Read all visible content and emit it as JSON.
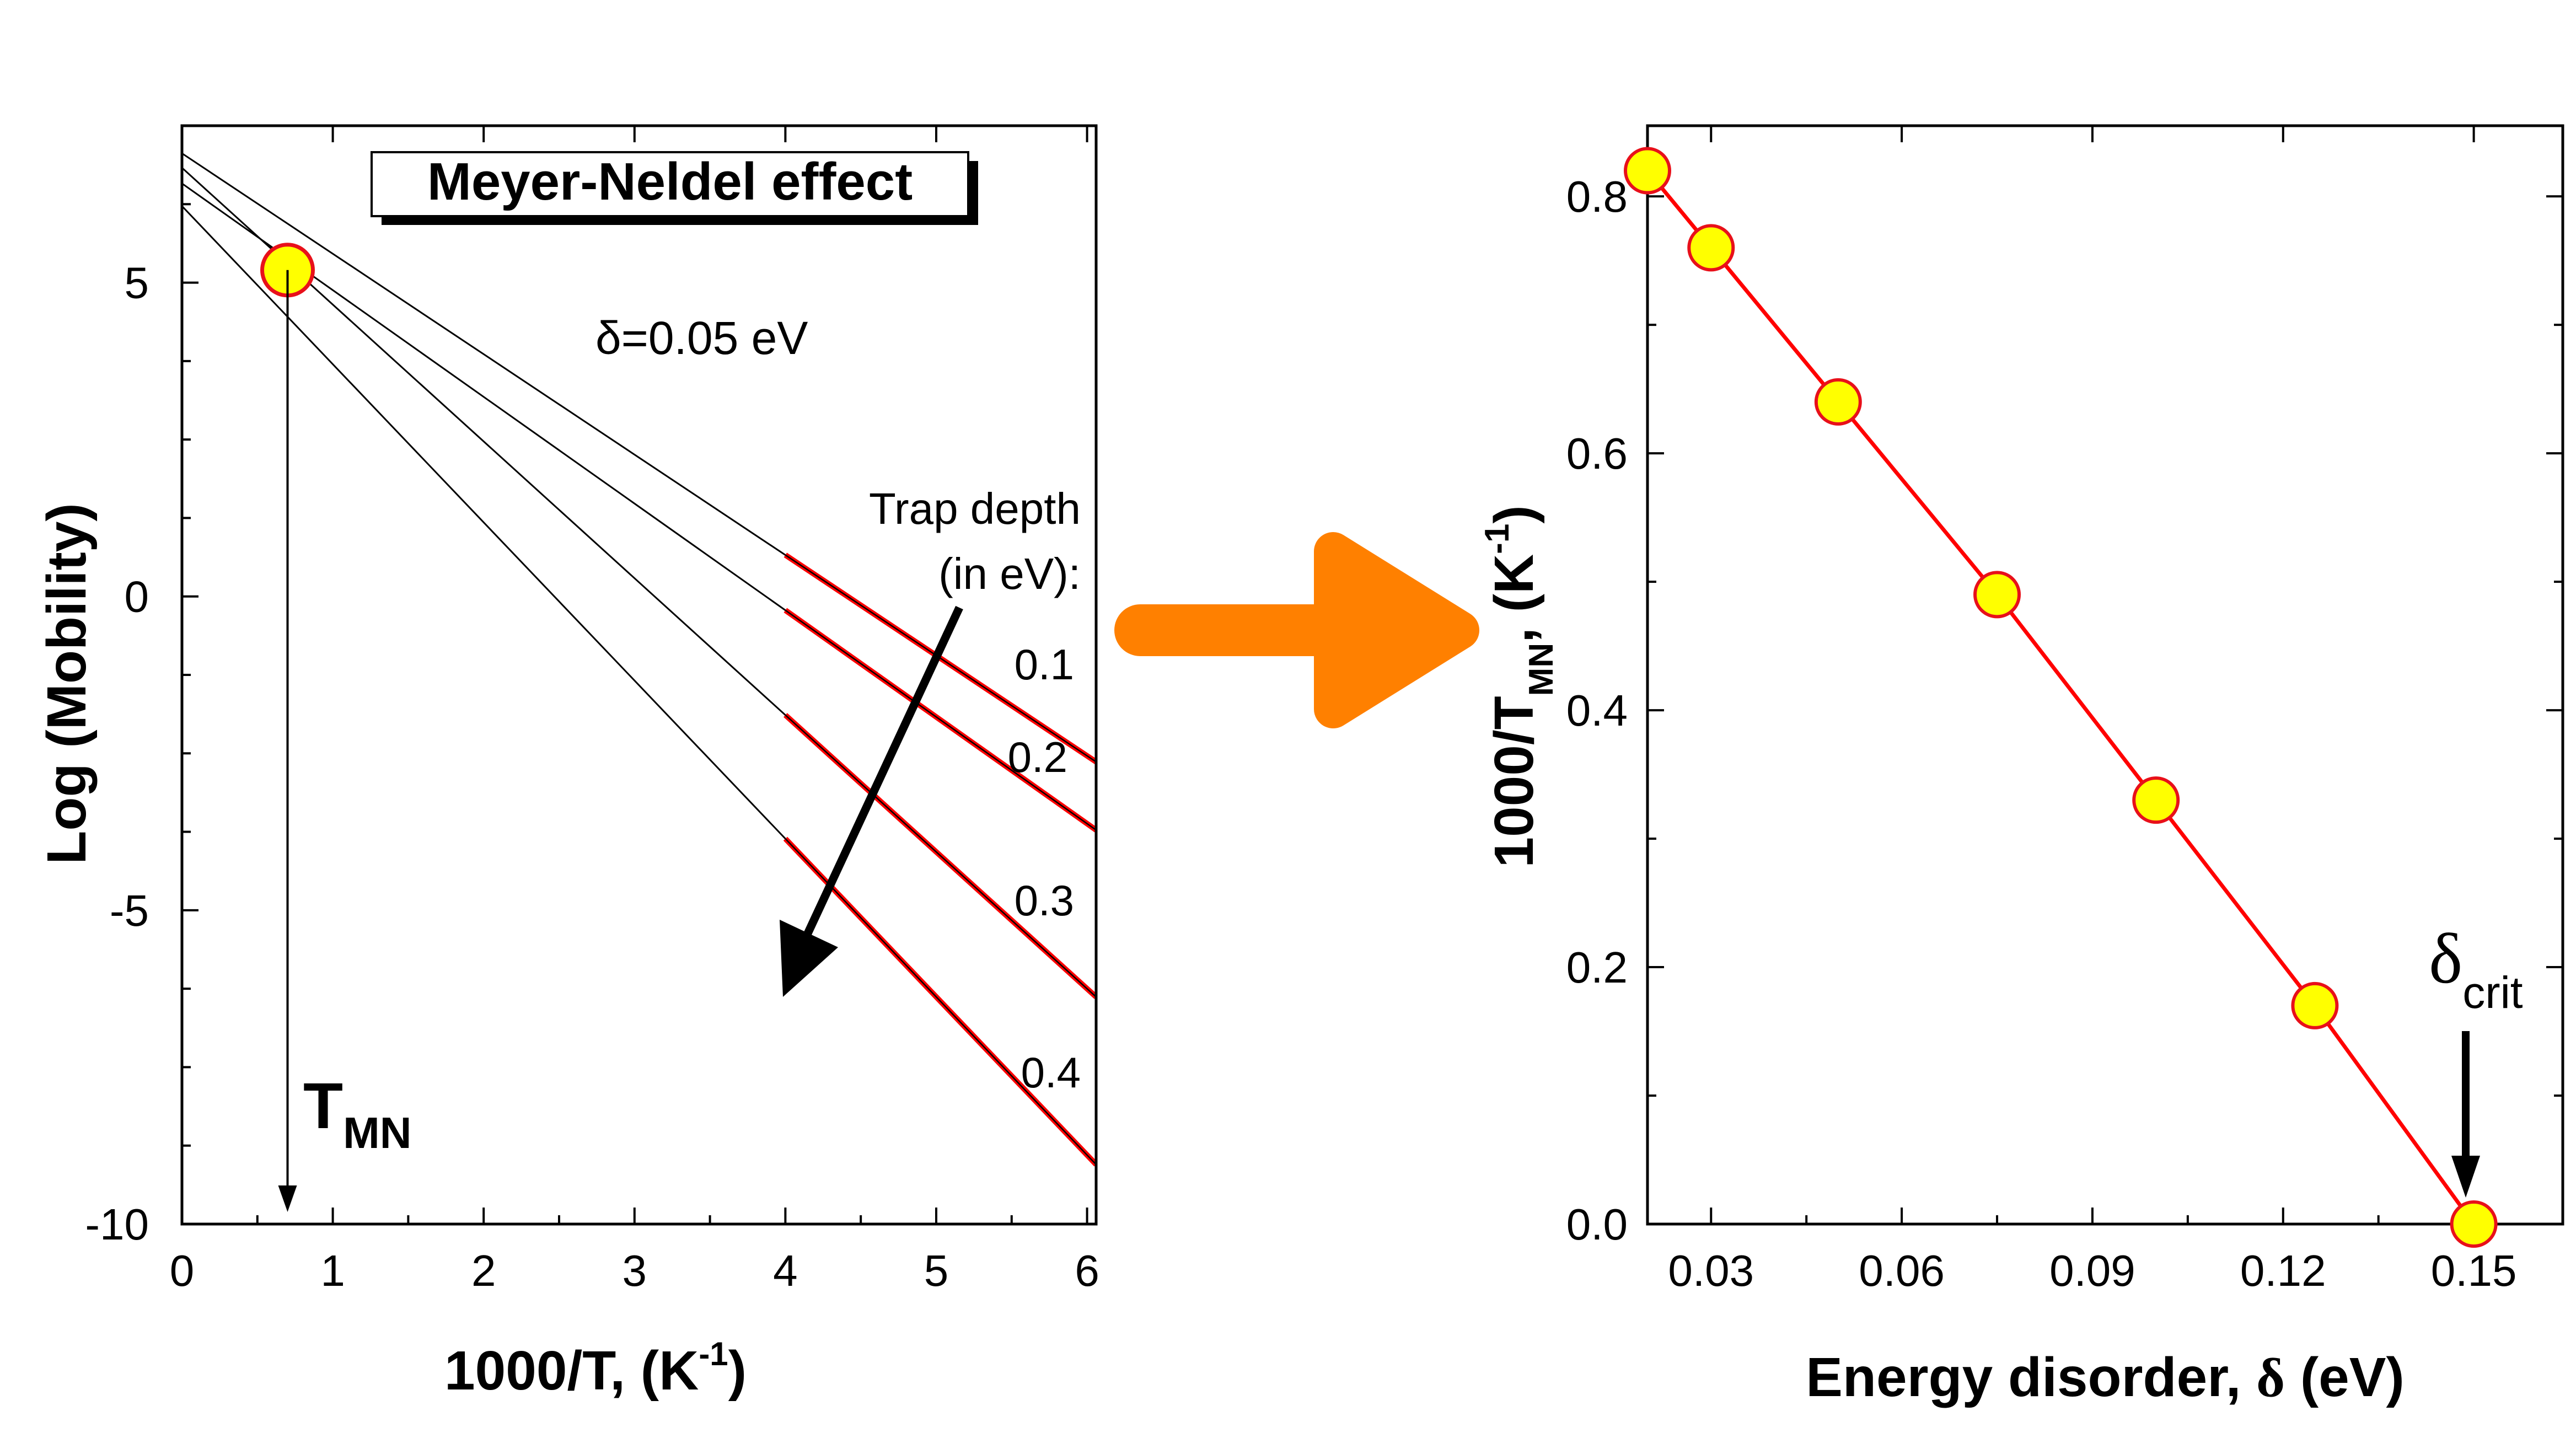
{
  "chart_data": [
    {
      "type": "line",
      "title": "Meyer-Neldel effect",
      "annotation": "δ=0.05 eV",
      "xlabel": "1000/T, (K-1)",
      "xlabel_parts": {
        "main": "1000/T, (K",
        "sup": "-1",
        "close": ")"
      },
      "ylabel": "Log (Mobility)",
      "xlim": [
        0,
        6.06
      ],
      "ylim": [
        -10,
        7.5
      ],
      "xticks": [
        0,
        1,
        2,
        3,
        4,
        5,
        6
      ],
      "xtick_labels": [
        "0",
        "1",
        "2",
        "3",
        "4",
        "5",
        "6"
      ],
      "yticks": [
        -10,
        -5,
        0,
        5
      ],
      "ytick_labels": [
        "-10",
        "-5",
        "0",
        "5"
      ],
      "legend_title": [
        "Trap depth",
        "(in eV):"
      ],
      "meyer_neldel_point": {
        "x": 0.7,
        "y": 5.2
      },
      "tmn_label": {
        "main": "T",
        "sub": "MN"
      },
      "series": [
        {
          "name": "0.1",
          "intercept": 7.06,
          "slope": -1.6,
          "fit_x": [
            4.0,
            6.06
          ]
        },
        {
          "name": "0.2",
          "intercept": 6.58,
          "slope": -1.7,
          "fit_x": [
            4.0,
            6.06
          ]
        },
        {
          "name": "0.3",
          "intercept": 6.83,
          "slope": -2.18,
          "fit_x": [
            4.0,
            6.06
          ]
        },
        {
          "name": "0.4",
          "intercept": 6.22,
          "slope": -2.52,
          "fit_x": [
            4.0,
            6.06
          ]
        }
      ],
      "colors": {
        "fit": "#ff0000",
        "line": "#000000",
        "marker_fill": "#ffff00",
        "marker_edge": "#e8101a"
      }
    },
    {
      "type": "scatter",
      "xlabel": "Energy disorder, δ (eV)",
      "xlabel_parts": {
        "main": "Energy disorder,  ",
        "sym": "δ",
        "tail": " (eV)"
      },
      "ylabel": "1000/TMN, (K-1)",
      "ylabel_parts": {
        "main": "1000/T",
        "sub": "MN",
        "mid": ", (K",
        "sup": "-1",
        "close": ")"
      },
      "xlim": [
        0.02,
        0.164
      ],
      "ylim": [
        0.0,
        0.855
      ],
      "xticks": [
        0.03,
        0.06,
        0.09,
        0.12,
        0.15
      ],
      "xtick_labels": [
        "0.03",
        "0.06",
        "0.09",
        "0.12",
        "0.15"
      ],
      "yticks": [
        0.0,
        0.2,
        0.4,
        0.6,
        0.8
      ],
      "ytick_labels": [
        "0.0",
        "0.2",
        "0.4",
        "0.6",
        "0.8"
      ],
      "x": [
        0.02,
        0.03,
        0.05,
        0.075,
        0.1,
        0.125,
        0.15
      ],
      "y": [
        0.82,
        0.76,
        0.64,
        0.49,
        0.33,
        0.17,
        0.0
      ],
      "critical_label": {
        "main": "δ",
        "sub": "crit"
      },
      "colors": {
        "line": "#ff0000",
        "marker_fill": "#ffff00",
        "marker_edge": "#e8101a"
      }
    }
  ],
  "arrow_color": "#ff8000"
}
